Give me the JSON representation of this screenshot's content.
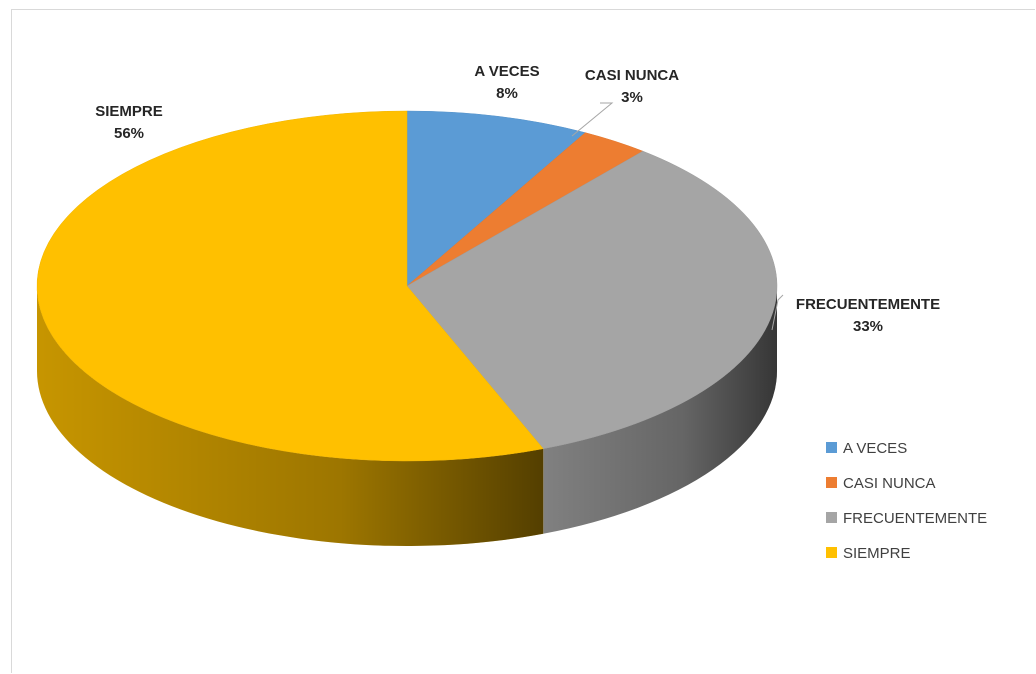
{
  "chart_data": {
    "type": "pie",
    "style": "3d",
    "categories": [
      "A VECES",
      "CASI NUNCA",
      "FRECUENTEMENTE",
      "SIEMPRE"
    ],
    "values": [
      8,
      3,
      33,
      56
    ],
    "value_labels": [
      "8%",
      "3%",
      "33%",
      "56%"
    ],
    "colors": [
      "#5b9bd5",
      "#ed7d31",
      "#a5a5a5",
      "#ffc000"
    ],
    "legend_position": "right",
    "title": ""
  }
}
